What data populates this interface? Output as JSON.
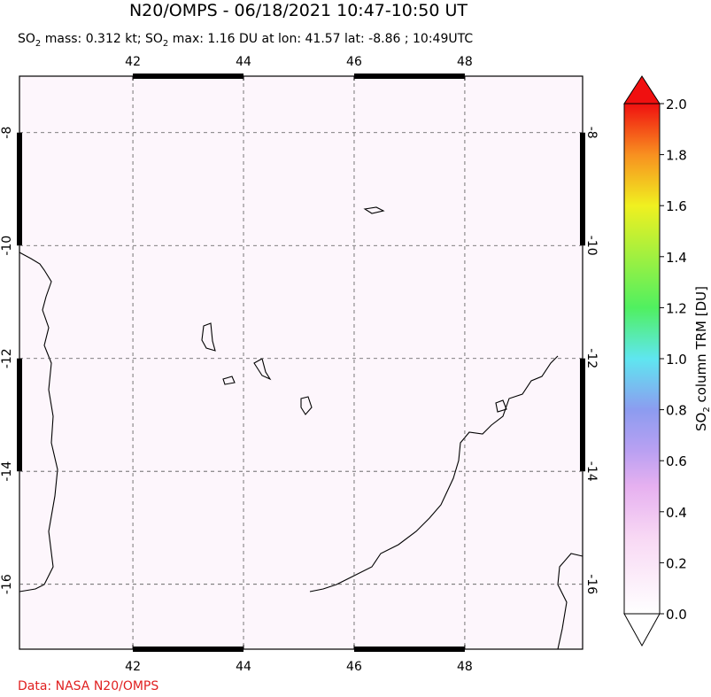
{
  "title": "N20/OMPS - 06/18/2021 10:47-10:50 UT",
  "subtitle": [
    "SO",
    "2",
    " mass: 0.312 kt; SO",
    "2",
    " max: 1.16 DU at lon: 41.57 lat: -8.86 ; 10:49UTC"
  ],
  "map": {
    "xlim": [
      39.95,
      50.13
    ],
    "ylim": [
      -17.15,
      -7
    ],
    "xticks": [
      42,
      44,
      46,
      48
    ],
    "yticks": [
      -8,
      -10,
      -12,
      -14,
      -16
    ],
    "grid": true
  },
  "colorbar": {
    "label": [
      "SO",
      "2",
      " column TRM [DU]"
    ],
    "lim": [
      0,
      2
    ],
    "ticks": [
      {
        "value": 0,
        "label": "0.0"
      },
      {
        "value": 0.2,
        "label": "0.2"
      },
      {
        "value": 0.4,
        "label": "0.4"
      },
      {
        "value": 0.6,
        "label": "0.6"
      },
      {
        "value": 0.8,
        "label": "0.8"
      },
      {
        "value": 1.0,
        "label": "1.0"
      },
      {
        "value": 1.2,
        "label": "1.2"
      },
      {
        "value": 1.4,
        "label": "1.4"
      },
      {
        "value": 1.6,
        "label": "1.6"
      },
      {
        "value": 1.8,
        "label": "1.8"
      },
      {
        "value": 2.0,
        "label": "2.0"
      }
    ]
  },
  "credit": "Data: NASA N20/OMPS"
}
